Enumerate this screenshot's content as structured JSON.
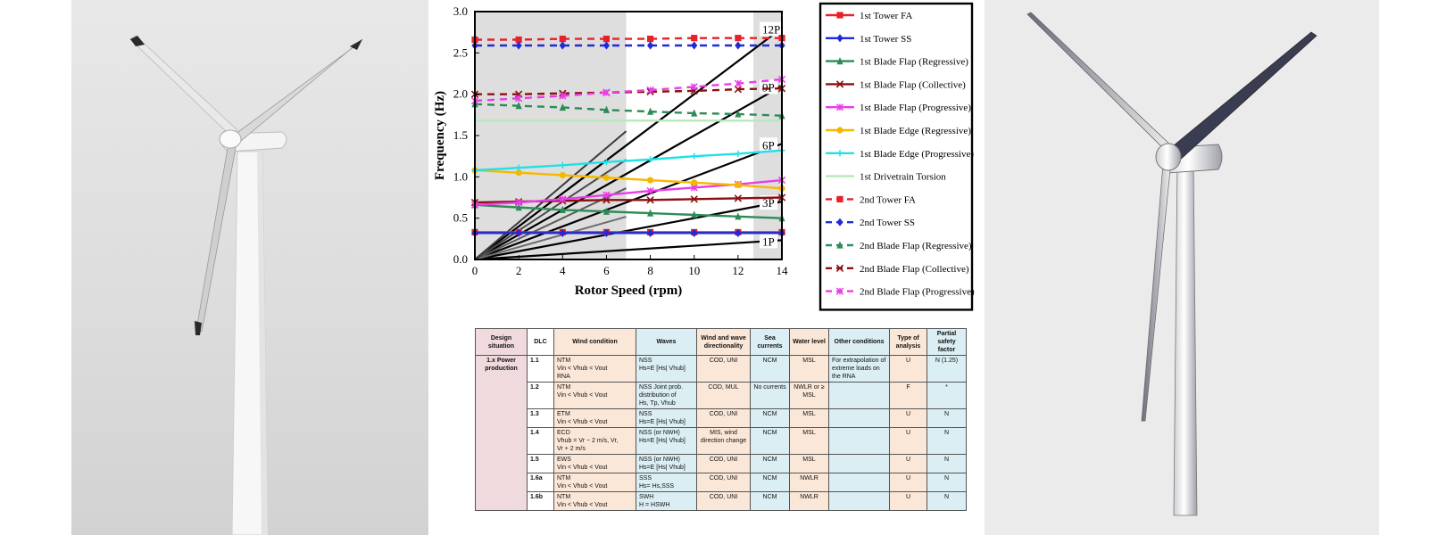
{
  "chart_data": {
    "type": "line",
    "xlabel": "Rotor Speed (rpm)",
    "ylabel": "Frequency (Hz)",
    "xlim": [
      0,
      14
    ],
    "ylim": [
      0,
      3.0
    ],
    "x_ticks": [
      "0",
      "2",
      "4",
      "6",
      "8",
      "10",
      "12",
      "14"
    ],
    "y_ticks": [
      "0.0",
      "0.5",
      "1.0",
      "1.5",
      "2.0",
      "2.5",
      "3.0"
    ],
    "shaded_regions": [
      [
        0,
        6.9
      ],
      [
        12.7,
        14
      ]
    ],
    "legend_position": "right",
    "x": [
      0,
      2,
      4,
      6,
      8,
      10,
      12,
      14
    ],
    "series": [
      {
        "name": "1st Tower FA",
        "color": "#e8202a",
        "dash": false,
        "marker": "square",
        "values": [
          0.33,
          0.33,
          0.33,
          0.33,
          0.33,
          0.33,
          0.33,
          0.33
        ]
      },
      {
        "name": "1st Tower SS",
        "color": "#1f2bd8",
        "dash": false,
        "marker": "diamond",
        "values": [
          0.32,
          0.32,
          0.32,
          0.32,
          0.32,
          0.32,
          0.32,
          0.32
        ]
      },
      {
        "name": "1st Blade Flap (Regressive)",
        "color": "#2e8b57",
        "dash": false,
        "marker": "triangle",
        "values": [
          0.66,
          0.63,
          0.6,
          0.58,
          0.56,
          0.54,
          0.52,
          0.5
        ]
      },
      {
        "name": "1st Blade Flap (Collective)",
        "color": "#8b1010",
        "dash": false,
        "marker": "x",
        "values": [
          0.69,
          0.7,
          0.71,
          0.72,
          0.72,
          0.73,
          0.74,
          0.75
        ]
      },
      {
        "name": "1st Blade Flap (Progressive)",
        "color": "#e83ee8",
        "dash": false,
        "marker": "star",
        "values": [
          0.66,
          0.69,
          0.73,
          0.78,
          0.83,
          0.87,
          0.91,
          0.96
        ]
      },
      {
        "name": "1st Blade Edge (Regressive)",
        "color": "#f5b800",
        "dash": false,
        "marker": "circle",
        "values": [
          1.08,
          1.05,
          1.02,
          0.99,
          0.96,
          0.93,
          0.9,
          0.86
        ]
      },
      {
        "name": "1st Blade Edge (Progressive)",
        "color": "#20e0e8",
        "dash": false,
        "marker": "plus",
        "values": [
          1.08,
          1.11,
          1.14,
          1.18,
          1.21,
          1.25,
          1.28,
          1.32
        ]
      },
      {
        "name": "1st Drivetrain Torsion",
        "color": "#b6eab8",
        "dash": false,
        "marker": "none",
        "values": [
          1.68,
          1.68,
          1.68,
          1.68,
          1.68,
          1.68,
          1.68,
          1.68
        ]
      },
      {
        "name": "2nd Tower FA",
        "color": "#e8202a",
        "dash": true,
        "marker": "square",
        "values": [
          2.66,
          2.66,
          2.67,
          2.67,
          2.67,
          2.68,
          2.68,
          2.68
        ]
      },
      {
        "name": "2nd Tower SS",
        "color": "#1f2bd8",
        "dash": true,
        "marker": "diamond",
        "values": [
          2.59,
          2.59,
          2.59,
          2.59,
          2.59,
          2.59,
          2.59,
          2.59
        ]
      },
      {
        "name": "2nd Blade Flap (Regressive)",
        "color": "#2e8b57",
        "dash": true,
        "marker": "triangle",
        "values": [
          1.88,
          1.86,
          1.84,
          1.81,
          1.79,
          1.77,
          1.76,
          1.74
        ]
      },
      {
        "name": "2nd Blade Flap (Collective)",
        "color": "#8b1010",
        "dash": true,
        "marker": "x",
        "values": [
          2.0,
          2.0,
          2.01,
          2.02,
          2.03,
          2.04,
          2.06,
          2.07
        ]
      },
      {
        "name": "2nd Blade Flap (Progressive)",
        "color": "#e83ee8",
        "dash": true,
        "marker": "star",
        "values": [
          1.92,
          1.95,
          1.98,
          2.02,
          2.05,
          2.09,
          2.13,
          2.18
        ]
      }
    ],
    "harmonics": [
      {
        "label": "1P",
        "slope": 0.01667,
        "color": "#000000"
      },
      {
        "label": "3P",
        "slope": 0.05,
        "color": "#000000"
      },
      {
        "label": "6P",
        "slope": 0.1,
        "color": "#000000"
      },
      {
        "label": "9P",
        "slope": 0.15,
        "color": "#000000"
      },
      {
        "label": "12P",
        "slope": 0.2,
        "color": "#000000"
      }
    ]
  },
  "dlc_table": {
    "headers": {
      "design": "Design situation",
      "dlc": "DLC",
      "wind": "Wind condition",
      "waves": "Waves",
      "dir": "Wind and wave directionality",
      "sea": "Sea currents",
      "water": "Water level",
      "other": "Other conditions",
      "type": "Type of analysis",
      "psf": "Partial safety factor"
    },
    "design_situation": "1.x  Power production",
    "rows": [
      {
        "dlc": "1.1",
        "wind": "NTM",
        "wind2": "Vin < Vhub < Vout",
        "wind3": "RNA",
        "waves": "NSS",
        "waves2": "Hs=E [Hs| Vhub]",
        "dir": "COD, UNI",
        "sea": "NCM",
        "water": "MSL",
        "other": "For extrapolation of extreme loads on the RNA",
        "type": "U",
        "psf": "N (1.25)"
      },
      {
        "dlc": "1.2",
        "wind": "NTM",
        "wind2": "Vin < Vhub < Vout",
        "wind3": "",
        "waves": "NSS Joint prob. distribution of",
        "waves2": "Hs, Tp, Vhub",
        "dir": "COD, MUL",
        "sea": "No currents",
        "water": "NWLR or ≥ MSL",
        "other": "",
        "type": "F",
        "psf": "*"
      },
      {
        "dlc": "1.3",
        "wind": "ETM",
        "wind2": "Vin < Vhub < Vout",
        "wind3": "",
        "waves": "NSS",
        "waves2": "Hs=E [Hs| Vhub]",
        "dir": "COD, UNI",
        "sea": "NCM",
        "water": "MSL",
        "other": "",
        "type": "U",
        "psf": "N"
      },
      {
        "dlc": "1.4",
        "wind": "ECD",
        "wind2": "Vhub = Vr − 2 m/s, Vr,",
        "wind3": "Vr + 2 m/s",
        "waves": "NSS (or NWH)",
        "waves2": "Hs=E [Hs| Vhub]",
        "dir": "MIS, wind direction change",
        "sea": "NCM",
        "water": "MSL",
        "other": "",
        "type": "U",
        "psf": "N"
      },
      {
        "dlc": "1.5",
        "wind": "EWS",
        "wind2": "Vin < Vhub < Vout",
        "wind3": "",
        "waves": "NSS (or NWH)",
        "waves2": "Hs=E [Hs| Vhub]",
        "dir": "COD, UNI",
        "sea": "NCM",
        "water": "MSL",
        "other": "",
        "type": "U",
        "psf": "N"
      },
      {
        "dlc": "1.6a",
        "wind": "NTM",
        "wind2": "Vin < Vhub < Vout",
        "wind3": "",
        "waves": "SSS",
        "waves2": "Hs= Hs,SSS",
        "dir": "COD, UNI",
        "sea": "NCM",
        "water": "NWLR",
        "other": "",
        "type": "U",
        "psf": "N"
      },
      {
        "dlc": "1.6b",
        "wind": "NTM",
        "wind2": "Vin < Vhub < Vout",
        "wind3": "",
        "waves": "SWH",
        "waves2": "H = HSWH",
        "dir": "COD, UNI",
        "sea": "NCM",
        "water": "NWLR",
        "other": "",
        "type": "U",
        "psf": "N"
      }
    ]
  }
}
